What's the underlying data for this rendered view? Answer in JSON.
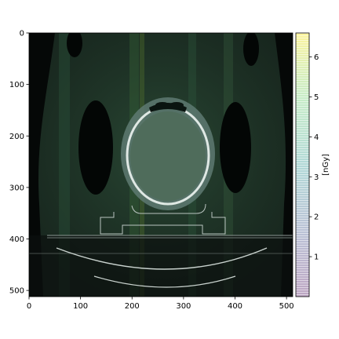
{
  "chart_data": {
    "type": "heatmap",
    "title": "",
    "xlabel": "",
    "ylabel": "",
    "xlim": [
      0,
      512
    ],
    "ylim": [
      512,
      0
    ],
    "x_ticks": [
      0,
      100,
      200,
      300,
      400,
      500
    ],
    "y_ticks": [
      0,
      100,
      200,
      300,
      400,
      500
    ],
    "colorbar": {
      "label": "[nGy]",
      "range": [
        0,
        6.6
      ],
      "ticks": [
        1,
        2,
        3,
        4,
        5,
        6
      ],
      "colormap": [
        "#440154",
        "#3b528b",
        "#21918c",
        "#5ec962",
        "#fde725"
      ]
    },
    "background_image": "axial CT slice of a head on a treatment couch (grayscale) with semi-transparent dose overlay",
    "overlay_alpha": 0.3
  }
}
